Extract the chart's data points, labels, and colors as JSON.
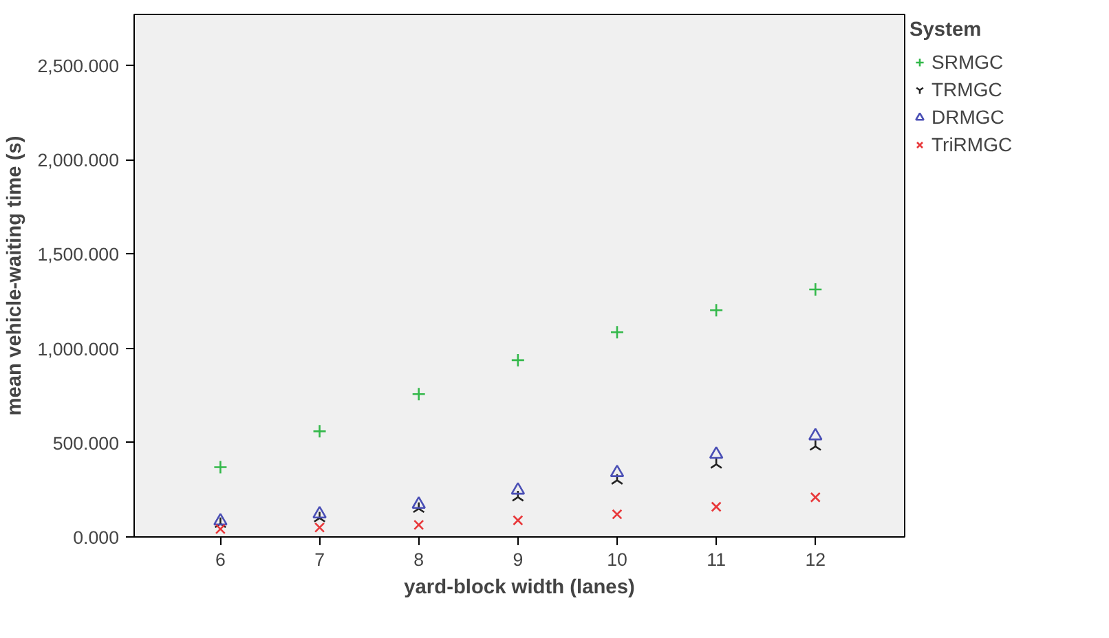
{
  "chart_data": {
    "type": "scatter",
    "xlabel": "yard-block width (lanes)",
    "ylabel": "mean vehicle-waiting time (s)",
    "legend_title": "System",
    "legend": "top right",
    "grid": false,
    "x": [
      6,
      7,
      8,
      9,
      10,
      11,
      12
    ],
    "xlim": [
      5.13,
      12.9
    ],
    "xticks": [
      6,
      7,
      8,
      9,
      10,
      11,
      12
    ],
    "ylim": [
      0,
      2770
    ],
    "yticks": [
      {
        "value": 0,
        "label": "0.000"
      },
      {
        "value": 500,
        "label": "500.000"
      },
      {
        "value": 1000,
        "label": "1,000.000"
      },
      {
        "value": 1500,
        "label": "1,500.000"
      },
      {
        "value": 2000,
        "label": "2,000.000"
      },
      {
        "value": 2500,
        "label": "2,500.000"
      }
    ],
    "series": [
      {
        "name": "SRMGC",
        "color": "#33b84a",
        "marker": "cross",
        "values": [
          370,
          560,
          757,
          937,
          1085,
          1202,
          1312
        ]
      },
      {
        "name": "TRMGC",
        "color": "#222222",
        "values": [
          70,
          100,
          150,
          211,
          300,
          385,
          480
        ]
      },
      {
        "name": "DRMGC",
        "color": "#4a4fb5",
        "marker": "triangle",
        "values": [
          85,
          122,
          173,
          248,
          341,
          438,
          536
        ]
      },
      {
        "name": "TriRMGC",
        "color": "#e8383a",
        "values": [
          42,
          50,
          64,
          88,
          120,
          160,
          210
        ]
      }
    ]
  }
}
